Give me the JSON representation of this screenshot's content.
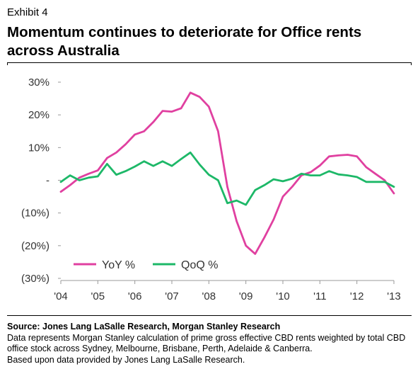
{
  "header": {
    "exhibit": "Exhibit 4",
    "title": "Momentum continues to deteriorate for Office rents across Australia"
  },
  "footer": {
    "source": "Source: Jones Lang LaSalle Research, Morgan Stanley Research",
    "note_1": "Data represents Morgan Stanley calculation of prime gross effective CBD rents weighted by total CBD office stock across Sydney, Melbourne, Brisbane, Perth, Adelaide & Canberra.",
    "note_2": "Based upon data provided by Jones Lang LaSalle Research."
  },
  "colors": {
    "yoy": "#e040a0",
    "qoq": "#1db868",
    "axis": "#999999"
  },
  "chart_data": {
    "type": "line",
    "title": "",
    "xlabel": "",
    "ylabel": "",
    "x_tick_labels": [
      "'04",
      "'05",
      "'06",
      "'07",
      "'08",
      "'09",
      "'10",
      "'11",
      "'12",
      "'13"
    ],
    "xlim": [
      2004,
      2013
    ],
    "y_tick_labels": [
      "30%",
      "20%",
      "10%",
      "-",
      "(10%)",
      "(20%)",
      "(30%)"
    ],
    "y_ticks": [
      30,
      20,
      10,
      0,
      -10,
      -20,
      -30
    ],
    "ylim": [
      -30,
      30
    ],
    "grid": false,
    "legend_position": "bottom-left",
    "series": [
      {
        "name": "YoY %",
        "color": "#e040a0",
        "x": [
          2004.0,
          2004.25,
          2004.5,
          2004.75,
          2005.0,
          2005.25,
          2005.5,
          2005.75,
          2006.0,
          2006.25,
          2006.5,
          2006.75,
          2007.0,
          2007.25,
          2007.5,
          2007.75,
          2008.0,
          2008.25,
          2008.5,
          2008.75,
          2009.0,
          2009.25,
          2009.5,
          2009.75,
          2010.0,
          2010.25,
          2010.5,
          2010.75,
          2011.0,
          2011.25,
          2011.5,
          2011.75,
          2012.0,
          2012.25,
          2012.5,
          2012.75,
          2013.0
        ],
        "values": [
          -3.5,
          -1.5,
          0.8,
          2.0,
          3.0,
          6.8,
          8.5,
          11.0,
          14.0,
          15.0,
          17.8,
          21.2,
          21.0,
          22.0,
          26.8,
          25.5,
          22.5,
          15.0,
          -2.0,
          -12.5,
          -20.0,
          -22.5,
          -17.5,
          -12.0,
          -5.0,
          -2.0,
          1.5,
          2.5,
          4.5,
          7.3,
          7.6,
          7.8,
          7.3,
          4.0,
          2.0,
          0.0,
          -4.0
        ]
      },
      {
        "name": "QoQ %",
        "color": "#1db868",
        "x": [
          2004.0,
          2004.25,
          2004.5,
          2004.75,
          2005.0,
          2005.25,
          2005.5,
          2005.75,
          2006.0,
          2006.25,
          2006.5,
          2006.75,
          2007.0,
          2007.25,
          2007.5,
          2007.75,
          2008.0,
          2008.25,
          2008.5,
          2008.75,
          2009.0,
          2009.25,
          2009.5,
          2009.75,
          2010.0,
          2010.25,
          2010.5,
          2010.75,
          2011.0,
          2011.25,
          2011.5,
          2011.75,
          2012.0,
          2012.25,
          2012.5,
          2012.75,
          2013.0
        ],
        "values": [
          -0.5,
          1.5,
          0.0,
          0.8,
          1.2,
          5.0,
          1.7,
          2.8,
          4.2,
          5.8,
          4.4,
          5.8,
          4.4,
          6.5,
          8.5,
          4.8,
          1.7,
          0.0,
          -7.0,
          -6.2,
          -7.5,
          -3.0,
          -1.5,
          0.3,
          -0.3,
          0.5,
          2.0,
          1.5,
          1.5,
          2.8,
          1.8,
          1.5,
          1.0,
          -0.5,
          -0.5,
          -0.5,
          -2.0
        ]
      }
    ]
  }
}
